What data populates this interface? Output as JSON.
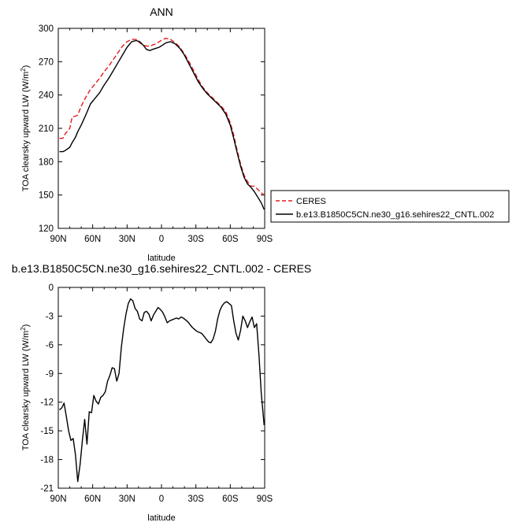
{
  "chart_data": [
    {
      "type": "line",
      "title": "ANN",
      "xlabel": "latitude",
      "ylabel": "TOA clearsky upward LW (W/m",
      "ylabel_sup": "2",
      "ylabel_end": ")",
      "xlim": [
        90,
        -90
      ],
      "ylim": [
        120,
        300
      ],
      "xticks": [
        90,
        60,
        30,
        0,
        -30,
        -60,
        -90
      ],
      "xtick_labels": [
        "90N",
        "60N",
        "30N",
        "0",
        "30S",
        "60S",
        "90S"
      ],
      "yticks": [
        120,
        150,
        180,
        210,
        240,
        270,
        300
      ],
      "ytick_labels": [
        "120",
        "150",
        "180",
        "210",
        "240",
        "270",
        "300"
      ],
      "legend": {
        "position": "right"
      },
      "series": [
        {
          "name": "CERES",
          "style": "dashed",
          "color": "#e41a1c",
          "x": [
            89,
            86,
            84,
            80,
            78,
            75,
            73,
            70,
            66,
            62,
            58,
            54,
            50,
            46,
            42,
            38,
            34,
            30,
            26,
            22,
            19,
            16,
            13,
            10,
            8,
            5,
            2,
            -1,
            -4,
            -8,
            -12,
            -16,
            -20,
            -24,
            -28,
            -32,
            -36,
            -40,
            -44,
            -48,
            -52,
            -56,
            -60,
            -63,
            -66,
            -69,
            -72,
            -75,
            -78,
            -81,
            -84,
            -87,
            -89.5
          ],
          "y": [
            201,
            201,
            205,
            210,
            220,
            221,
            222,
            230,
            238,
            245,
            250,
            255,
            261,
            266,
            272,
            278,
            284,
            288,
            290,
            290,
            287,
            285,
            284,
            284,
            285,
            286,
            288,
            290,
            291,
            290,
            287,
            283,
            277,
            270,
            262,
            254,
            247,
            242,
            238,
            234,
            230,
            225,
            215,
            204,
            190,
            178,
            168,
            162,
            158,
            158,
            155,
            152,
            150
          ]
        },
        {
          "name": "b.e13.B1850C5CN.ne30_g16.sehires22_CNTL.002",
          "style": "solid",
          "color": "#000000",
          "x": [
            89,
            86,
            84,
            80,
            78,
            75,
            73,
            70,
            66,
            62,
            58,
            54,
            50,
            46,
            42,
            38,
            34,
            30,
            26,
            22,
            19,
            16,
            13,
            10,
            8,
            5,
            2,
            -1,
            -4,
            -8,
            -12,
            -16,
            -20,
            -24,
            -28,
            -32,
            -36,
            -40,
            -44,
            -48,
            -52,
            -56,
            -60,
            -63,
            -66,
            -69,
            -72,
            -75,
            -78,
            -81,
            -84,
            -87,
            -89.5
          ],
          "y": [
            189,
            189,
            190,
            193,
            197,
            202,
            207,
            213,
            222,
            232,
            237,
            242,
            249,
            255,
            262,
            269,
            276,
            283,
            288,
            289,
            288,
            285,
            281,
            280,
            281,
            282,
            283,
            285,
            287,
            288,
            286,
            282,
            276,
            268,
            260,
            252,
            246,
            241,
            237,
            233,
            229,
            223,
            213,
            201,
            188,
            176,
            166,
            160,
            157,
            153,
            148,
            143,
            137
          ]
        }
      ]
    },
    {
      "type": "line",
      "title": "b.e13.B1850C5CN.ne30_g16.sehires22_CNTL.002 - CERES",
      "xlabel": "latitude",
      "ylabel": "TOA clearsky upward LW (W/m",
      "ylabel_sup": "2",
      "ylabel_end": ")",
      "xlim": [
        90,
        -90
      ],
      "ylim": [
        -21,
        0
      ],
      "xticks": [
        90,
        60,
        30,
        0,
        -30,
        -60,
        -90
      ],
      "xtick_labels": [
        "90N",
        "60N",
        "30N",
        "0",
        "30S",
        "60S",
        "90S"
      ],
      "yticks": [
        0,
        -3,
        -6,
        -9,
        -12,
        -15,
        -18,
        -21
      ],
      "ytick_labels": [
        "0",
        "-3",
        "-6",
        "-9",
        "-12",
        "-15",
        "-18",
        "-21"
      ],
      "series": [
        {
          "name": "b.e13.B1850C5CN.ne30_g16.sehires22_CNTL.002 - CERES",
          "style": "solid",
          "color": "#000000",
          "x": [
            89,
            87,
            85,
            83,
            81,
            79,
            77,
            75,
            73,
            71,
            69,
            67,
            65,
            63,
            61,
            59,
            57,
            55,
            53,
            51,
            49,
            47,
            45,
            43,
            41,
            39,
            37,
            35,
            33,
            31,
            29,
            27,
            25,
            23,
            21,
            19,
            17,
            15,
            13,
            11,
            9,
            7,
            5,
            3,
            1,
            -1,
            -3,
            -5,
            -7,
            -9,
            -11,
            -13,
            -15,
            -17,
            -19,
            -21,
            -23,
            -25,
            -27,
            -29,
            -31,
            -33,
            -35,
            -37,
            -39,
            -41,
            -43,
            -45,
            -47,
            -49,
            -51,
            -53,
            -55,
            -57,
            -59,
            -61,
            -63,
            -65,
            -67,
            -69,
            -71,
            -73,
            -75,
            -77,
            -79,
            -81,
            -83,
            -85,
            -87,
            -89.5
          ],
          "y": [
            -12.8,
            -12.6,
            -12.1,
            -13.5,
            -15,
            -16,
            -15.8,
            -17.5,
            -20.3,
            -18.5,
            -16,
            -13.8,
            -16.4,
            -13,
            -13.1,
            -11.3,
            -11.9,
            -12.2,
            -11.5,
            -11.3,
            -10.9,
            -9.8,
            -9.2,
            -8.4,
            -8.5,
            -9.8,
            -9,
            -6.2,
            -4.3,
            -2.8,
            -1.7,
            -1.2,
            -1.4,
            -2.2,
            -2.5,
            -3.3,
            -3.5,
            -2.6,
            -2.5,
            -2.8,
            -3.5,
            -2.9,
            -2.5,
            -2.1,
            -2.3,
            -2.6,
            -3.1,
            -3.7,
            -3.5,
            -3.4,
            -3.3,
            -3.2,
            -3.3,
            -3.1,
            -3.2,
            -3.4,
            -3.6,
            -3.9,
            -4.2,
            -4.4,
            -4.6,
            -4.7,
            -4.8,
            -5.1,
            -5.4,
            -5.7,
            -5.8,
            -5.4,
            -4.6,
            -3.3,
            -2.4,
            -1.9,
            -1.6,
            -1.5,
            -1.7,
            -1.9,
            -3.5,
            -4.8,
            -5.5,
            -4.5,
            -3,
            -3.5,
            -4.2,
            -3.6,
            -3.1,
            -4.2,
            -3.8,
            -7,
            -11,
            -14.4
          ]
        }
      ]
    }
  ]
}
